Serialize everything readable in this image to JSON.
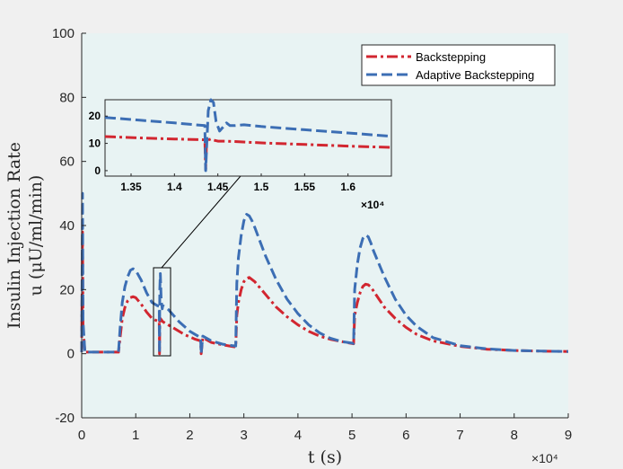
{
  "chart_data": {
    "type": "line",
    "xlabel": "t (s)",
    "ylabel_line1": "Insulin Injection Rate",
    "ylabel_line2": "u (μU/ml/min)",
    "xlim": [
      0,
      90000
    ],
    "ylim": [
      -20,
      100
    ],
    "x_ticks": [
      0,
      10000,
      20000,
      30000,
      40000,
      50000,
      60000,
      70000,
      80000,
      90000
    ],
    "x_tick_labels": [
      "0",
      "1",
      "2",
      "3",
      "4",
      "5",
      "6",
      "7",
      "8",
      "9"
    ],
    "x_exponent_label": "×10⁴",
    "y_ticks": [
      -20,
      0,
      20,
      40,
      60,
      80,
      100
    ],
    "y_tick_labels": [
      "-20",
      "0",
      "20",
      "40",
      "60",
      "80",
      "100"
    ],
    "grid": false,
    "legend_position": "top-right",
    "series": [
      {
        "name": "Backstepping",
        "color": "#d22630",
        "style": "dash-dot",
        "x": [
          0,
          150,
          250,
          600,
          2000,
          6800,
          7100,
          7500,
          8000,
          8500,
          9000,
          9500,
          10000,
          11000,
          12000,
          13000,
          14000,
          14350,
          14400,
          14450,
          14550,
          15000,
          17000,
          19000,
          21000,
          22000,
          22100,
          22400,
          24000,
          26000,
          28000,
          28500,
          28700,
          29000,
          29500,
          30000,
          30500,
          31000,
          32000,
          33000,
          34000,
          36000,
          38000,
          40000,
          42000,
          44000,
          46000,
          48000,
          50000,
          50300,
          50500,
          51000,
          51500,
          52000,
          52500,
          53000,
          53500,
          54000,
          55000,
          56000,
          58000,
          60000,
          62000,
          65000,
          70000,
          75000,
          80000,
          85000,
          90000
        ],
        "y": [
          0.5,
          38,
          8,
          0.5,
          0.5,
          0.5,
          5,
          11,
          14.5,
          16.5,
          17.5,
          17.8,
          17.5,
          15.5,
          13,
          11,
          10.2,
          10,
          0,
          10.5,
          11,
          10,
          8,
          6,
          4.5,
          4,
          0,
          5,
          3.5,
          2.8,
          2.2,
          2.1,
          12,
          16,
          20,
          22.5,
          23.5,
          23.8,
          22.5,
          20.5,
          18.5,
          14.5,
          11.5,
          9,
          7,
          5.5,
          4.5,
          3.8,
          3.2,
          3.1,
          12,
          16,
          19,
          21,
          21.7,
          21.5,
          20.8,
          19.5,
          17,
          14.5,
          11,
          8.2,
          6,
          4,
          2.3,
          1.4,
          1.0,
          0.8,
          0.7
        ]
      },
      {
        "name": "Adaptive Backstepping",
        "color": "#3c6eb4",
        "style": "dash",
        "x": [
          0,
          150,
          250,
          600,
          2000,
          6800,
          7100,
          7500,
          8000,
          8500,
          9000,
          9500,
          10000,
          11000,
          12000,
          13000,
          14000,
          14350,
          14400,
          14450,
          14550,
          14700,
          14900,
          15000,
          15500,
          16000,
          18000,
          20000,
          21000,
          22000,
          22100,
          22400,
          24000,
          26000,
          28000,
          28500,
          28700,
          29000,
          29500,
          30000,
          30500,
          31000,
          31500,
          32000,
          33000,
          34000,
          36000,
          38000,
          40000,
          42000,
          44000,
          46000,
          48000,
          50000,
          50300,
          50500,
          51000,
          51500,
          52000,
          52500,
          53000,
          53500,
          54000,
          55000,
          56000,
          58000,
          60000,
          62000,
          65000,
          70000,
          75000,
          80000,
          85000,
          90000
        ],
        "y": [
          0.5,
          50,
          10,
          0.5,
          0.5,
          0.5,
          8,
          16,
          21,
          24,
          26,
          26.5,
          26,
          23,
          19,
          16,
          15,
          14.8,
          0,
          20,
          25,
          17,
          14,
          15,
          14.5,
          13.8,
          10,
          7,
          6,
          5,
          0,
          5.5,
          4,
          3,
          2.5,
          2.4,
          22,
          30,
          37,
          41.5,
          43.5,
          43,
          41.5,
          39.5,
          35,
          30.5,
          23,
          17,
          12.5,
          9,
          6.5,
          4.8,
          3.8,
          3.3,
          3.2,
          20,
          28,
          33,
          36,
          37,
          36.5,
          34.5,
          32,
          28,
          24,
          17,
          12,
          8.5,
          5,
          2.5,
          1.5,
          1.0,
          0.8,
          0.7
        ]
      }
    ],
    "inset": {
      "xlim": [
        13200,
        16500
      ],
      "ylim": [
        -2,
        26
      ],
      "x_ticks": [
        13500,
        14000,
        14500,
        15000,
        15500,
        16000
      ],
      "x_tick_labels": [
        "1.35",
        "1.4",
        "1.45",
        "1.5",
        "1.55",
        "1.6"
      ],
      "x_exponent_label": "×10⁴",
      "y_ticks": [
        0,
        10,
        20
      ],
      "y_tick_labels": [
        "0",
        "10",
        "20"
      ],
      "series": [
        {
          "name": "Backstepping",
          "x": [
            13200,
            13600,
            14000,
            14350,
            14360,
            14370,
            14390,
            14420,
            14450,
            14500,
            14600,
            15000,
            15500,
            16000,
            16500
          ],
          "y": [
            12.5,
            12.0,
            11.6,
            11.3,
            0.5,
            10.2,
            11.2,
            11.6,
            11.2,
            10.8,
            10.8,
            10.2,
            9.6,
            9.0,
            8.5
          ]
        },
        {
          "name": "Adaptive Backstepping",
          "x": [
            13200,
            13600,
            14000,
            14350,
            14360,
            14370,
            14390,
            14420,
            14450,
            14480,
            14520,
            14560,
            14600,
            14640,
            14700,
            14800,
            15000,
            15500,
            16000,
            16500
          ],
          "y": [
            19.5,
            18.5,
            17.5,
            16.5,
            0,
            8,
            22,
            26,
            25,
            18,
            14.5,
            16,
            17.5,
            16.5,
            16.5,
            16.8,
            16.2,
            15,
            13.8,
            12.6
          ]
        }
      ]
    }
  }
}
